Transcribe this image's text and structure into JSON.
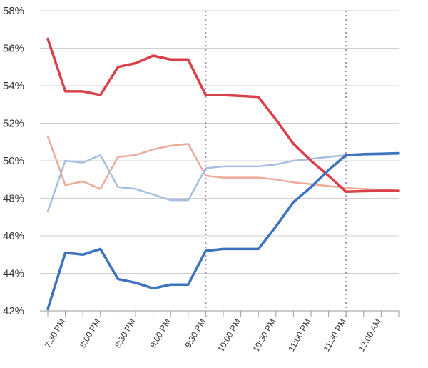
{
  "chart_data": {
    "type": "line",
    "title": "",
    "xlabel": "",
    "ylabel": "",
    "ylim": [
      42,
      58
    ],
    "y_ticks": [
      "42%",
      "44%",
      "46%",
      "48%",
      "50%",
      "52%",
      "54%",
      "56%",
      "58%"
    ],
    "y_tick_values": [
      42,
      44,
      46,
      48,
      50,
      52,
      54,
      56,
      58
    ],
    "x_tick_labels": [
      "7:30 PM",
      "8:00 PM",
      "8:30 PM",
      "9:00 PM",
      "9:30 PM",
      "10:00 PM",
      "10:30 PM",
      "11:00 PM",
      "11:30 PM",
      "12:00 AM"
    ],
    "grid": true,
    "vertical_markers": [
      "9:30 PM",
      "11:30 PM"
    ],
    "series": [
      {
        "color": "#d9404a",
        "emphasis": "strong",
        "x": [
          "7:15 PM",
          "7:30 PM",
          "7:45 PM",
          "8:00 PM",
          "8:15 PM",
          "8:30 PM",
          "8:45 PM",
          "9:00 PM",
          "9:15 PM",
          "9:30 PM",
          "9:45 PM",
          "10:00 PM",
          "10:15 PM",
          "10:30 PM",
          "10:45 PM",
          "11:00 PM",
          "11:15 PM",
          "11:30 PM",
          "11:45 PM",
          "12:00 AM",
          "12:15 AM"
        ],
        "values": [
          56.5,
          53.7,
          53.7,
          53.5,
          55.0,
          55.2,
          55.6,
          55.4,
          55.4,
          53.5,
          53.5,
          53.45,
          53.4,
          52.2,
          50.9,
          50.0,
          49.2,
          48.35,
          48.38,
          48.4,
          48.4
        ]
      },
      {
        "color": "#3d73be",
        "emphasis": "strong",
        "x": [
          "7:15 PM",
          "7:30 PM",
          "7:45 PM",
          "8:00 PM",
          "8:15 PM",
          "8:30 PM",
          "8:45 PM",
          "9:00 PM",
          "9:15 PM",
          "9:30 PM",
          "9:45 PM",
          "10:00 PM",
          "10:15 PM",
          "10:30 PM",
          "10:45 PM",
          "11:00 PM",
          "11:15 PM",
          "11:30 PM",
          "11:45 PM",
          "12:00 AM",
          "12:15 AM"
        ],
        "values": [
          42.1,
          45.1,
          45.0,
          45.3,
          43.7,
          43.5,
          43.2,
          43.4,
          43.4,
          45.2,
          45.3,
          45.3,
          45.3,
          46.5,
          47.8,
          48.6,
          49.5,
          50.3,
          50.35,
          50.37,
          50.4
        ]
      },
      {
        "color": "#eeaa9a",
        "emphasis": "light",
        "x": [
          "7:15 PM",
          "7:30 PM",
          "7:45 PM",
          "8:00 PM",
          "8:15 PM",
          "8:30 PM",
          "8:45 PM",
          "9:00 PM",
          "9:15 PM",
          "9:30 PM",
          "9:45 PM",
          "10:00 PM",
          "10:15 PM",
          "10:30 PM",
          "10:45 PM",
          "11:00 PM",
          "11:15 PM",
          "11:30 PM",
          "11:45 PM",
          "12:00 AM",
          "12:15 AM"
        ],
        "values": [
          51.3,
          48.7,
          48.9,
          48.5,
          50.2,
          50.3,
          50.6,
          50.8,
          50.9,
          49.2,
          49.1,
          49.1,
          49.1,
          49.0,
          48.85,
          48.75,
          48.65,
          48.55,
          48.5,
          48.45,
          48.4
        ]
      },
      {
        "color": "#a7bee0",
        "emphasis": "light",
        "x": [
          "7:15 PM",
          "7:30 PM",
          "7:45 PM",
          "8:00 PM",
          "8:15 PM",
          "8:30 PM",
          "8:45 PM",
          "9:00 PM",
          "9:15 PM",
          "9:30 PM",
          "9:45 PM",
          "10:00 PM",
          "10:15 PM",
          "10:30 PM",
          "10:45 PM",
          "11:00 PM",
          "11:15 PM",
          "11:30 PM",
          "11:45 PM",
          "12:00 AM",
          "12:15 AM"
        ],
        "values": [
          47.3,
          50.0,
          49.9,
          50.3,
          48.6,
          48.5,
          48.2,
          47.9,
          47.9,
          49.6,
          49.7,
          49.7,
          49.7,
          49.8,
          50.0,
          50.1,
          50.2,
          50.3,
          50.32,
          50.33,
          50.35
        ]
      }
    ]
  }
}
